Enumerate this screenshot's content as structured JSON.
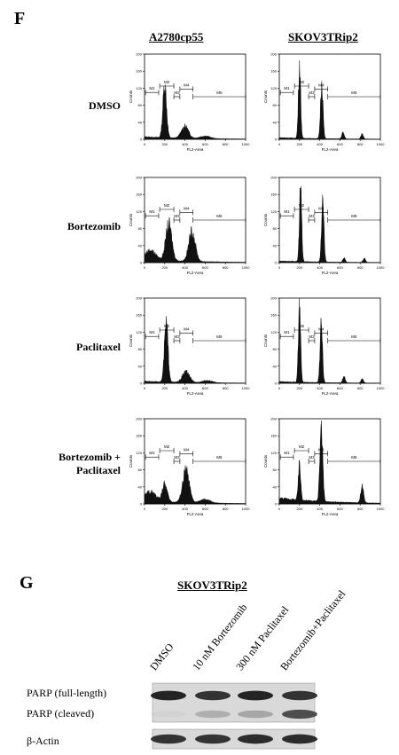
{
  "panel_f": {
    "letter": "F",
    "columns": [
      "A2780cp55",
      "SKOV3TRip2"
    ],
    "rows": [
      "DMSO",
      "Bortezomib",
      "Paclitaxel",
      "Bortezomib +\nPaclitaxel"
    ]
  },
  "histogram_axes": {
    "xlabel": "FL2-Area",
    "ylabel": "Counts",
    "x_ticks": [
      "0",
      "200",
      "400",
      "600",
      "800",
      "1000"
    ],
    "y_ticks": [
      "0",
      "40",
      "80",
      "120",
      "160",
      "200"
    ],
    "gate_labels": [
      "M1",
      "M2",
      "M3",
      "M4",
      "M5"
    ]
  },
  "chart_data": [
    {
      "type": "area",
      "row": "DMSO",
      "column": "A2780cp55",
      "xlim": [
        0,
        1000
      ],
      "ylim": [
        0,
        200
      ],
      "peaks": [
        {
          "x": 200,
          "height": 125,
          "width": 18
        },
        {
          "x": 400,
          "height": 28,
          "width": 35
        },
        {
          "x": 600,
          "height": 6,
          "width": 50
        }
      ],
      "base": 6
    },
    {
      "type": "area",
      "row": "DMSO",
      "column": "SKOV3TRip2",
      "xlim": [
        0,
        1000
      ],
      "ylim": [
        0,
        200
      ],
      "peaks": [
        {
          "x": 200,
          "height": 175,
          "width": 11
        },
        {
          "x": 420,
          "height": 135,
          "width": 12
        },
        {
          "x": 630,
          "height": 15,
          "width": 12
        },
        {
          "x": 820,
          "height": 12,
          "width": 12
        }
      ],
      "base": 4
    },
    {
      "type": "area",
      "row": "Bortezomib",
      "column": "A2780cp55",
      "xlim": [
        0,
        1000
      ],
      "ylim": [
        0,
        200
      ],
      "peaks": [
        {
          "x": 60,
          "height": 22,
          "width": 50
        },
        {
          "x": 240,
          "height": 85,
          "width": 30
        },
        {
          "x": 470,
          "height": 70,
          "width": 32
        }
      ],
      "base": 8
    },
    {
      "type": "area",
      "row": "Bortezomib",
      "column": "SKOV3TRip2",
      "xlim": [
        0,
        1000
      ],
      "ylim": [
        0,
        200
      ],
      "peaks": [
        {
          "x": 210,
          "height": 175,
          "width": 11
        },
        {
          "x": 430,
          "height": 135,
          "width": 12
        },
        {
          "x": 640,
          "height": 10,
          "width": 12
        },
        {
          "x": 840,
          "height": 10,
          "width": 12
        }
      ],
      "base": 4
    },
    {
      "type": "area",
      "row": "Paclitaxel",
      "column": "A2780cp55",
      "xlim": [
        0,
        1000
      ],
      "ylim": [
        0,
        200
      ],
      "peaks": [
        {
          "x": 215,
          "height": 135,
          "width": 18
        },
        {
          "x": 410,
          "height": 25,
          "width": 35
        },
        {
          "x": 620,
          "height": 5,
          "width": 50
        }
      ],
      "base": 5
    },
    {
      "type": "area",
      "row": "Paclitaxel",
      "column": "SKOV3TRip2",
      "xlim": [
        0,
        1000
      ],
      "ylim": [
        0,
        200
      ],
      "peaks": [
        {
          "x": 200,
          "height": 175,
          "width": 11
        },
        {
          "x": 415,
          "height": 140,
          "width": 12
        },
        {
          "x": 640,
          "height": 15,
          "width": 12
        },
        {
          "x": 820,
          "height": 10,
          "width": 12
        }
      ],
      "base": 4
    },
    {
      "type": "area",
      "row": "Bortezomib +\nPaclitaxel",
      "column": "A2780cp55",
      "xlim": [
        0,
        1000
      ],
      "ylim": [
        0,
        200
      ],
      "peaks": [
        {
          "x": 60,
          "height": 22,
          "width": 50
        },
        {
          "x": 200,
          "height": 40,
          "width": 25
        },
        {
          "x": 410,
          "height": 75,
          "width": 32
        },
        {
          "x": 600,
          "height": 8,
          "width": 50
        }
      ],
      "base": 8
    },
    {
      "type": "area",
      "row": "Bortezomib +\nPaclitaxel",
      "column": "SKOV3TRip2",
      "xlim": [
        0,
        1000
      ],
      "ylim": [
        0,
        200
      ],
      "peaks": [
        {
          "x": 200,
          "height": 80,
          "width": 12
        },
        {
          "x": 415,
          "height": 175,
          "width": 14
        },
        {
          "x": 820,
          "height": 40,
          "width": 14
        }
      ],
      "base": 14
    }
  ],
  "panel_g": {
    "letter": "G",
    "title": "SKOV3TRip2",
    "lanes": [
      "DMSO",
      "10 nM Bortezomib",
      "300 nM Paclitaxel",
      "Bortezomib+Paclitaxel"
    ],
    "bands": [
      {
        "label": "PARP (full-length)",
        "intensity": [
          0.95,
          0.9,
          0.95,
          0.9
        ]
      },
      {
        "label": "PARP (cleaved)",
        "intensity": [
          0.05,
          0.35,
          0.4,
          0.8
        ]
      },
      {
        "label": "β-Actin",
        "intensity": [
          0.9,
          0.9,
          0.92,
          0.92
        ]
      }
    ]
  }
}
